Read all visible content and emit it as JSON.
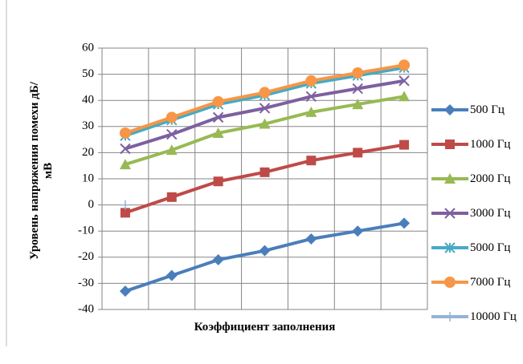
{
  "chart_data": {
    "type": "line",
    "y_label": "Уровень напряжения помехи дБ/мВ",
    "x_label": "Коэффициент заполнения",
    "categories": [
      null,
      null,
      null,
      null,
      null,
      null,
      null
    ],
    "ylim": [
      -40,
      60
    ],
    "yticks": [
      -40,
      -30,
      -20,
      -10,
      0,
      10,
      20,
      30,
      40,
      50,
      60
    ],
    "grid": true,
    "legend": "right",
    "series": [
      {
        "name": "500 Гц",
        "color": "#4a7ebb",
        "marker": "diamond",
        "values": [
          -33,
          -27,
          -21,
          -17.5,
          -13,
          -10,
          -7
        ]
      },
      {
        "name": "1000 Гц",
        "color": "#be4b48",
        "marker": "square",
        "values": [
          -3,
          3,
          9,
          12.5,
          17,
          20,
          23
        ]
      },
      {
        "name": "2000 Гц",
        "color": "#98b954",
        "marker": "triangle",
        "values": [
          15.5,
          21,
          27.5,
          31,
          35.5,
          38.5,
          41.5
        ]
      },
      {
        "name": "3000 Гц",
        "color": "#7d60a0",
        "marker": "x",
        "values": [
          21.5,
          27,
          33.5,
          37,
          41.5,
          44.5,
          47.5
        ]
      },
      {
        "name": "5000 Гц",
        "color": "#46aac5",
        "marker": "star",
        "values": [
          26.5,
          32.5,
          38.5,
          42,
          46.5,
          49.5,
          52.5
        ]
      },
      {
        "name": "7000 Гц",
        "color": "#f79646",
        "marker": "circle",
        "values": [
          27.5,
          33.5,
          39.5,
          43,
          47.5,
          50.5,
          53.5
        ]
      },
      {
        "name": "10000 Гц",
        "color": "#94b3d6",
        "marker": "plus",
        "values": [
          0,
          null,
          null,
          null,
          null,
          null,
          null
        ]
      }
    ]
  }
}
